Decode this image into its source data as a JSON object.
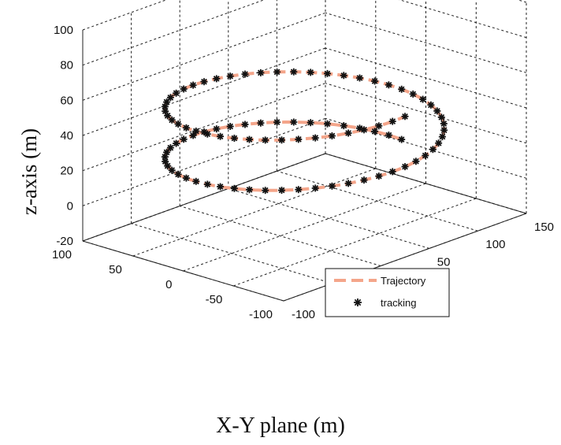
{
  "chart_data": {
    "type": "line3d",
    "title": "",
    "xlabel": "X-Y plane (m)",
    "ylabel": "",
    "zlabel": "z-axis  (m)",
    "xlim": [
      -100,
      150
    ],
    "ylim": [
      -100,
      100
    ],
    "zlim": [
      -20,
      100
    ],
    "x_ticks": [
      "-100",
      "-50",
      "0",
      "50",
      "100",
      "150"
    ],
    "y_ticks": [
      "-100",
      "-50",
      "0",
      "50",
      "100"
    ],
    "z_ticks": [
      "-20",
      "0",
      "20",
      "40",
      "60",
      "80",
      "100"
    ],
    "grid": true,
    "legend_position": "bottom-right",
    "series": [
      {
        "name": "Trajectory",
        "style": "dashed-line",
        "color": "#f4a58a",
        "helix": {
          "center_x": 25,
          "center_y": 0,
          "radius": 100,
          "z_start": 10,
          "z_end": 60,
          "turns": 1.75,
          "phase_start_deg": 0
        }
      },
      {
        "name": "tracking",
        "style": "star-markers",
        "color": "#111111",
        "marker_count": 92
      }
    ]
  },
  "legend": {
    "trajectory_label": "Trajectory",
    "tracking_label": "tracking"
  },
  "colors": {
    "trajectory": "#f4a58a",
    "marker": "#111111",
    "grid": "#222222",
    "background": "#ffffff"
  }
}
